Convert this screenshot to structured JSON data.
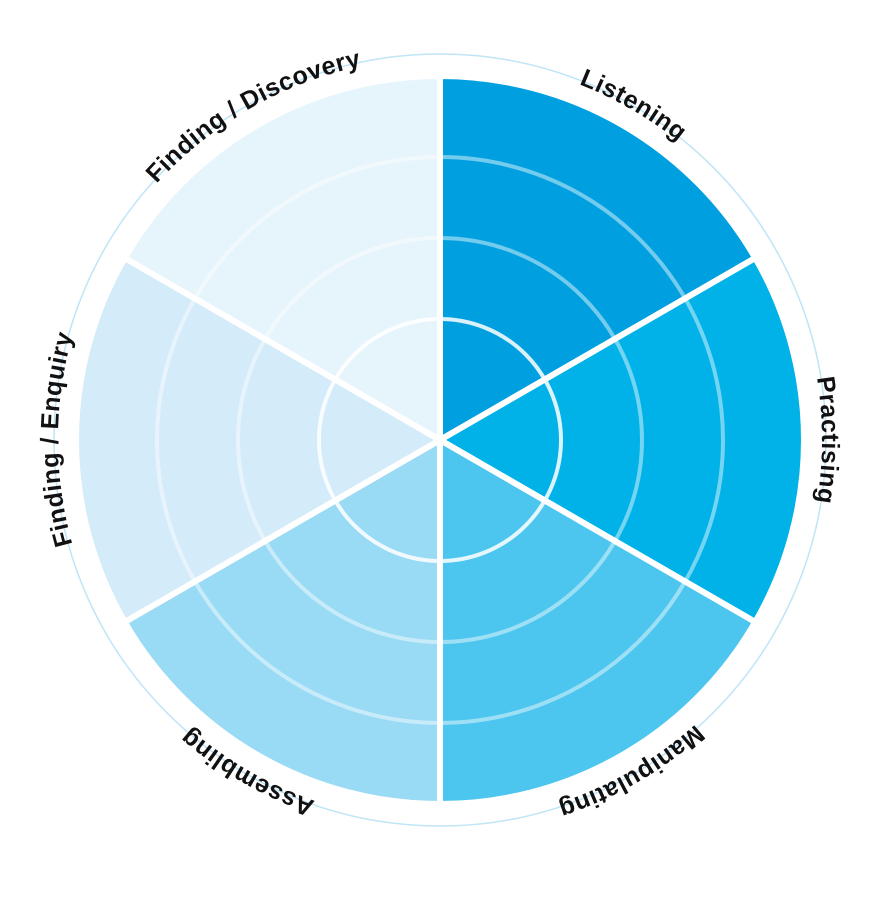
{
  "segments": [
    {
      "label": "Listening",
      "color": "#00a0e0"
    },
    {
      "label": "Practising",
      "color": "#00b2e8"
    },
    {
      "label": "Manipulating",
      "color": "#4dc6ef"
    },
    {
      "label": "Assembling",
      "color": "#99daf5"
    },
    {
      "label": "Finding / Enquiry",
      "color": "#d4ebf9"
    },
    {
      "label": "Finding / Discovery",
      "color": "#e6f4fc"
    }
  ]
}
